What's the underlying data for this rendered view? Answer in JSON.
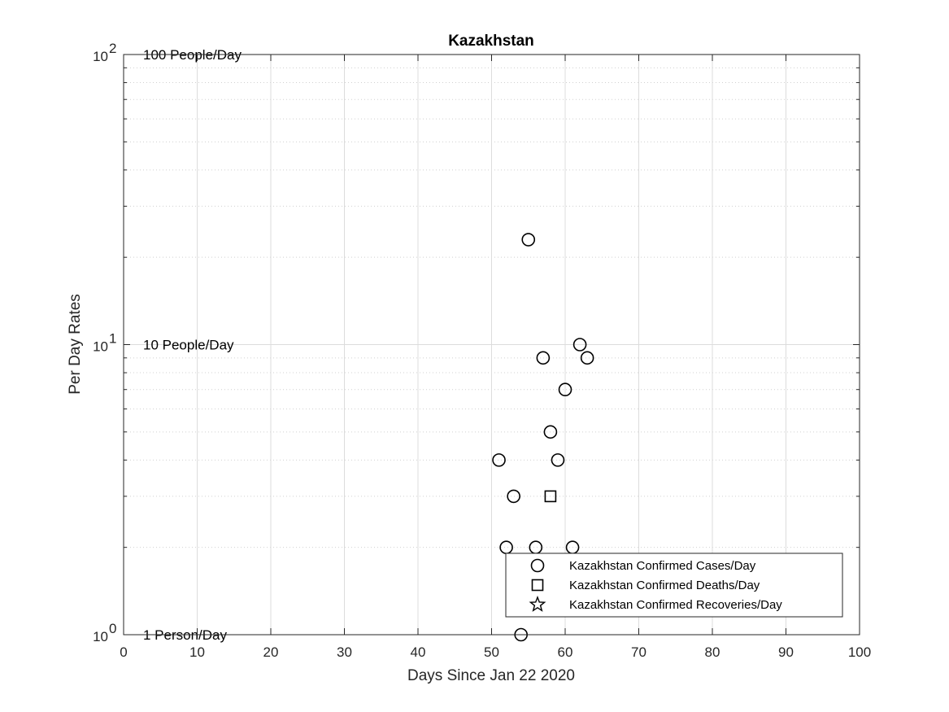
{
  "chart_data": {
    "type": "scatter",
    "title": "Kazakhstan",
    "xlabel": "Days Since Jan 22 2020",
    "ylabel": "Per Day Rates",
    "xlim": [
      0,
      100
    ],
    "ylim": [
      1,
      100
    ],
    "yscale": "log",
    "grid": true,
    "x_ticks": [
      0,
      10,
      20,
      30,
      40,
      50,
      60,
      70,
      80,
      90,
      100
    ],
    "y_ticks": [
      {
        "value": 1,
        "base": "10",
        "exp": "0"
      },
      {
        "value": 10,
        "base": "10",
        "exp": "1"
      },
      {
        "value": 100,
        "base": "10",
        "exp": "2"
      }
    ],
    "reference_labels": [
      {
        "y": 100,
        "text": "100 People/Day"
      },
      {
        "y": 10,
        "text": "10 People/Day"
      },
      {
        "y": 1,
        "text": "1 Person/Day"
      }
    ],
    "legend_position": "bottom-right",
    "series": [
      {
        "name": "Kazakhstan Confirmed Cases/Day",
        "marker": "circle",
        "points": [
          {
            "x": 51,
            "y": 4
          },
          {
            "x": 52,
            "y": 2
          },
          {
            "x": 53,
            "y": 3
          },
          {
            "x": 54,
            "y": 1
          },
          {
            "x": 55,
            "y": 23
          },
          {
            "x": 56,
            "y": 2
          },
          {
            "x": 57,
            "y": 9
          },
          {
            "x": 58,
            "y": 5
          },
          {
            "x": 59,
            "y": 4
          },
          {
            "x": 60,
            "y": 7
          },
          {
            "x": 61,
            "y": 2
          },
          {
            "x": 62,
            "y": 10
          },
          {
            "x": 63,
            "y": 9
          }
        ]
      },
      {
        "name": "Kazakhstan Confirmed Deaths/Day",
        "marker": "square",
        "points": [
          {
            "x": 58,
            "y": 3
          }
        ]
      },
      {
        "name": "Kazakhstan Confirmed Recoveries/Day",
        "marker": "star",
        "points": []
      }
    ]
  }
}
